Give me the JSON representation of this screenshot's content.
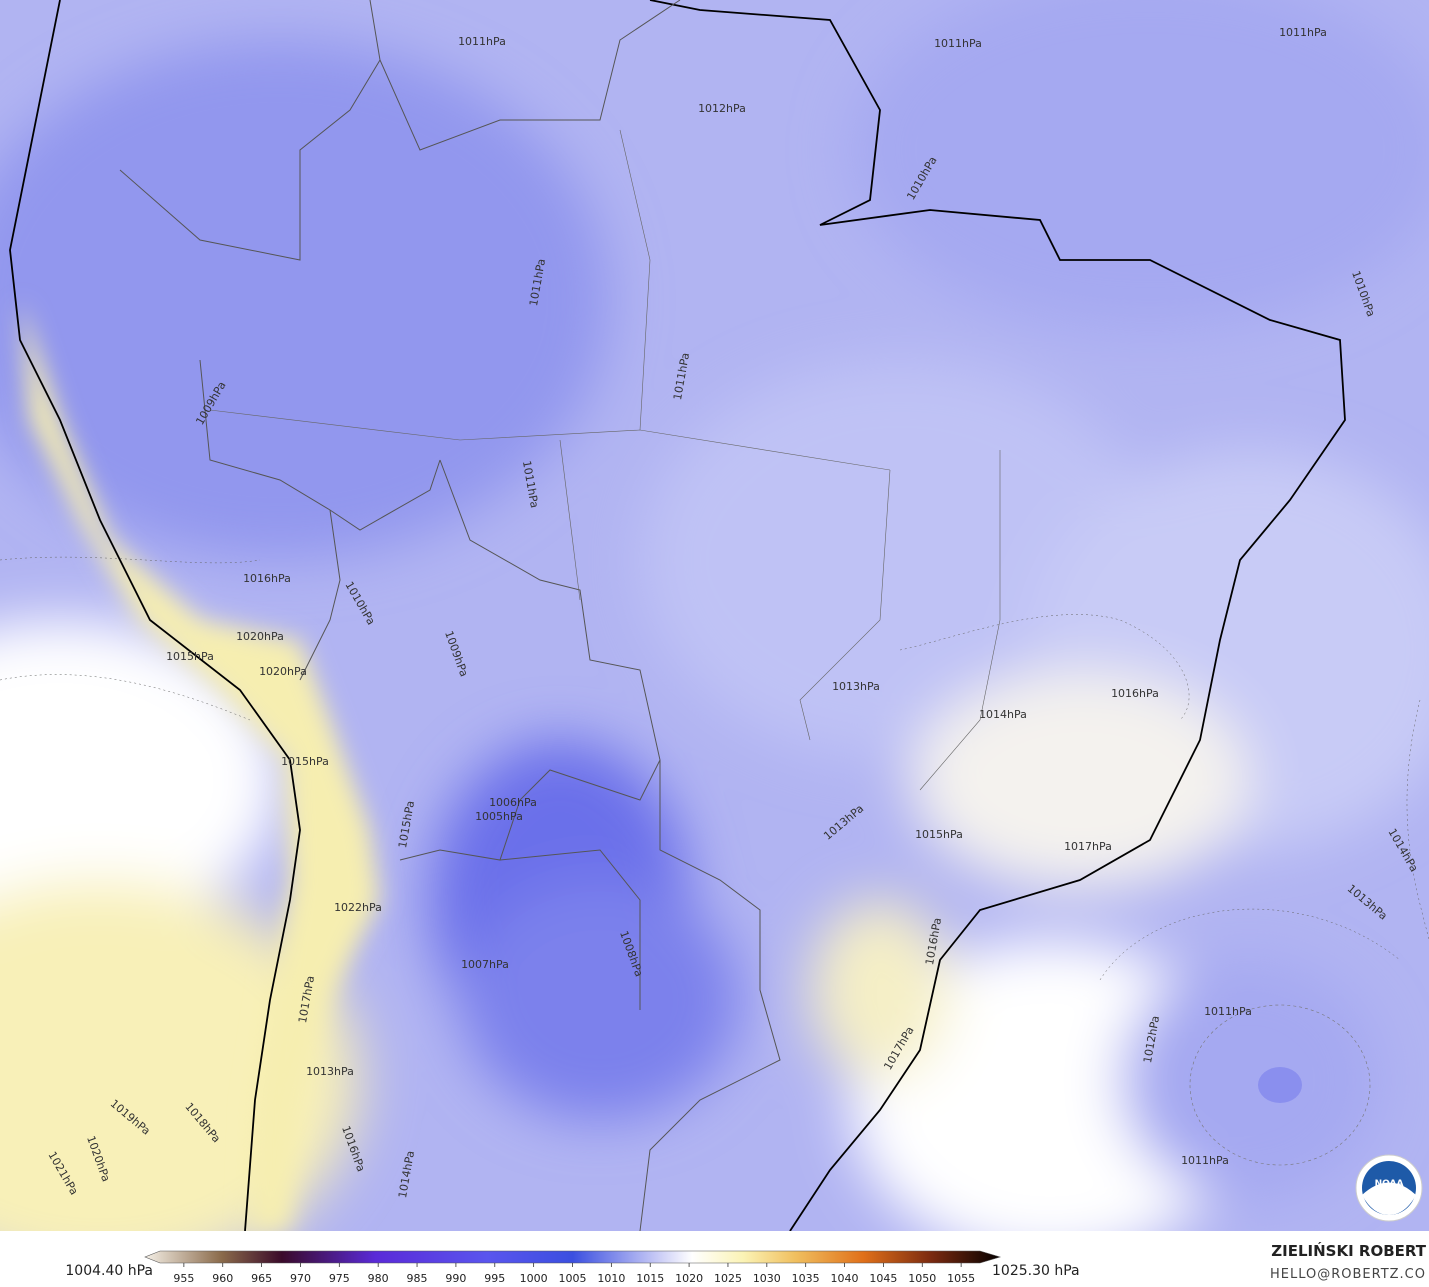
{
  "isobar_labels": [
    "1011hPa",
    "1011hPa",
    "1011hPa",
    "1012hPa",
    "1011hPa",
    "1011hPa",
    "1010hPa",
    "1010hPa",
    "1009hPa",
    "1011hPa",
    "1016hPa",
    "1010hPa",
    "1009hPa",
    "1015hPa",
    "1020hPa",
    "1020hPa",
    "1013hPa",
    "1014hPa",
    "1016hPa",
    "1015hPa",
    "1006hPa",
    "1005hPa",
    "1015hPa",
    "1013hPa",
    "1015hPa",
    "1017hPa",
    "1014hPa",
    "1013hPa",
    "1022hPa",
    "1008hPa",
    "1007hPa",
    "1016hPa",
    "1017hPa",
    "1011hPa",
    "1012hPa",
    "1017hPa",
    "1013hPa",
    "1018hPa",
    "1019hPa",
    "1020hPa",
    "1021hPa",
    "1016hPa",
    "1014hPa",
    "1011hPa"
  ],
  "colorbar": {
    "lim": [
      950,
      1060
    ],
    "ticks": [
      955,
      960,
      965,
      970,
      975,
      980,
      985,
      990,
      995,
      1000,
      1005,
      1010,
      1015,
      1020,
      1025,
      1030,
      1035,
      1040,
      1045,
      1050,
      1055
    ],
    "min_label": "1004.40 hPa",
    "max_label": "1025.30 hPa"
  },
  "credit": {
    "name": "ZIELIŃSKI ROBERT",
    "email": "HELLO@ROBERTZ.CO"
  },
  "logo": "NOAA"
}
